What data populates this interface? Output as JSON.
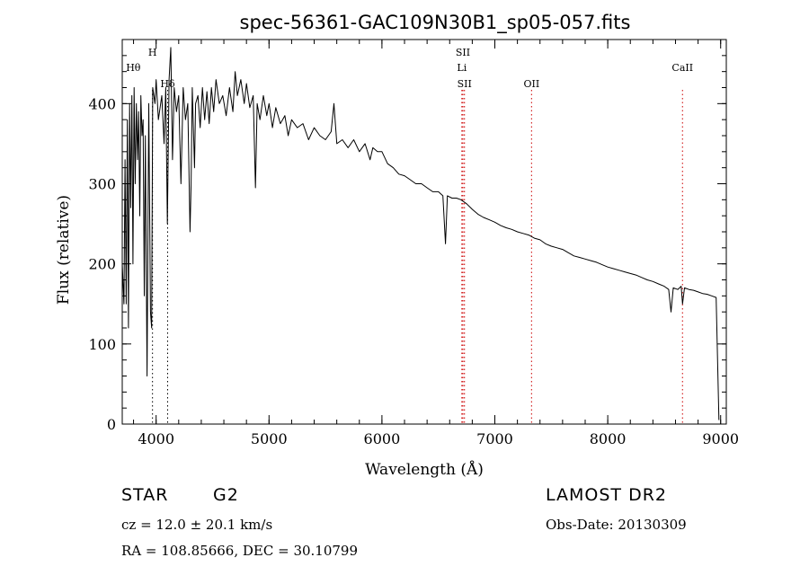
{
  "chart_data": {
    "type": "line",
    "title": "spec-56361-GAC109N30B1_sp05-057.fits",
    "xlabel": "Wavelength (Å)",
    "ylabel": "Flux (relative)",
    "xlim": [
      3700,
      9050
    ],
    "ylim": [
      0,
      480
    ],
    "x_ticks": [
      "4000",
      "5000",
      "6000",
      "7000",
      "8000",
      "9000"
    ],
    "y_ticks": [
      "0",
      "100",
      "200",
      "300",
      "400"
    ],
    "x_tick_values": [
      4000,
      5000,
      6000,
      7000,
      8000,
      9000
    ],
    "y_tick_values": [
      0,
      100,
      200,
      300,
      400
    ],
    "grid": false,
    "series": [
      {
        "color": "#000000",
        "points": [
          [
            3700,
            200
          ],
          [
            3715,
            150
          ],
          [
            3725,
            330
          ],
          [
            3735,
            150
          ],
          [
            3745,
            380
          ],
          [
            3755,
            120
          ],
          [
            3765,
            400
          ],
          [
            3775,
            270
          ],
          [
            3785,
            410
          ],
          [
            3795,
            200
          ],
          [
            3805,
            420
          ],
          [
            3815,
            300
          ],
          [
            3825,
            400
          ],
          [
            3835,
            330
          ],
          [
            3845,
            390
          ],
          [
            3855,
            260
          ],
          [
            3865,
            410
          ],
          [
            3875,
            360
          ],
          [
            3885,
            380
          ],
          [
            3895,
            160
          ],
          [
            3905,
            360
          ],
          [
            3920,
            60
          ],
          [
            3935,
            400
          ],
          [
            3950,
            140
          ],
          [
            3960,
            120
          ],
          [
            3970,
            420
          ],
          [
            3990,
            400
          ],
          [
            4000,
            430
          ],
          [
            4020,
            380
          ],
          [
            4050,
            410
          ],
          [
            4070,
            350
          ],
          [
            4085,
            420
          ],
          [
            4100,
            250
          ],
          [
            4115,
            430
          ],
          [
            4130,
            470
          ],
          [
            4145,
            330
          ],
          [
            4160,
            420
          ],
          [
            4180,
            390
          ],
          [
            4200,
            410
          ],
          [
            4220,
            300
          ],
          [
            4240,
            420
          ],
          [
            4260,
            380
          ],
          [
            4280,
            400
          ],
          [
            4300,
            240
          ],
          [
            4310,
            300
          ],
          [
            4320,
            420
          ],
          [
            4340,
            320
          ],
          [
            4350,
            400
          ],
          [
            4370,
            410
          ],
          [
            4390,
            370
          ],
          [
            4410,
            420
          ],
          [
            4430,
            380
          ],
          [
            4450,
            415
          ],
          [
            4470,
            375
          ],
          [
            4490,
            420
          ],
          [
            4510,
            390
          ],
          [
            4530,
            430
          ],
          [
            4560,
            400
          ],
          [
            4590,
            410
          ],
          [
            4620,
            385
          ],
          [
            4650,
            420
          ],
          [
            4680,
            390
          ],
          [
            4700,
            440
          ],
          [
            4720,
            410
          ],
          [
            4750,
            430
          ],
          [
            4780,
            400
          ],
          [
            4800,
            425
          ],
          [
            4830,
            395
          ],
          [
            4860,
            410
          ],
          [
            4880,
            295
          ],
          [
            4895,
            400
          ],
          [
            4920,
            380
          ],
          [
            4950,
            410
          ],
          [
            4980,
            385
          ],
          [
            5000,
            400
          ],
          [
            5030,
            370
          ],
          [
            5060,
            395
          ],
          [
            5100,
            375
          ],
          [
            5140,
            385
          ],
          [
            5170,
            360
          ],
          [
            5200,
            380
          ],
          [
            5250,
            370
          ],
          [
            5300,
            375
          ],
          [
            5350,
            355
          ],
          [
            5400,
            370
          ],
          [
            5450,
            360
          ],
          [
            5500,
            355
          ],
          [
            5550,
            365
          ],
          [
            5575,
            400
          ],
          [
            5600,
            350
          ],
          [
            5650,
            355
          ],
          [
            5700,
            345
          ],
          [
            5750,
            355
          ],
          [
            5800,
            340
          ],
          [
            5850,
            350
          ],
          [
            5895,
            330
          ],
          [
            5920,
            345
          ],
          [
            5960,
            340
          ],
          [
            6000,
            340
          ],
          [
            6050,
            325
          ],
          [
            6100,
            320
          ],
          [
            6150,
            312
          ],
          [
            6200,
            310
          ],
          [
            6250,
            305
          ],
          [
            6300,
            300
          ],
          [
            6350,
            300
          ],
          [
            6400,
            295
          ],
          [
            6450,
            290
          ],
          [
            6500,
            290
          ],
          [
            6540,
            285
          ],
          [
            6563,
            225
          ],
          [
            6580,
            285
          ],
          [
            6620,
            282
          ],
          [
            6660,
            282
          ],
          [
            6700,
            280
          ],
          [
            6750,
            275
          ],
          [
            6800,
            268
          ],
          [
            6850,
            262
          ],
          [
            6900,
            258
          ],
          [
            6950,
            255
          ],
          [
            7000,
            252
          ],
          [
            7050,
            248
          ],
          [
            7100,
            245
          ],
          [
            7150,
            243
          ],
          [
            7200,
            240
          ],
          [
            7250,
            238
          ],
          [
            7300,
            236
          ],
          [
            7350,
            232
          ],
          [
            7400,
            230
          ],
          [
            7450,
            225
          ],
          [
            7500,
            222
          ],
          [
            7550,
            220
          ],
          [
            7600,
            218
          ],
          [
            7650,
            214
          ],
          [
            7700,
            210
          ],
          [
            7750,
            208
          ],
          [
            7800,
            206
          ],
          [
            7850,
            204
          ],
          [
            7900,
            202
          ],
          [
            7950,
            199
          ],
          [
            8000,
            196
          ],
          [
            8050,
            194
          ],
          [
            8100,
            192
          ],
          [
            8150,
            190
          ],
          [
            8200,
            188
          ],
          [
            8250,
            186
          ],
          [
            8300,
            183
          ],
          [
            8350,
            180
          ],
          [
            8400,
            178
          ],
          [
            8450,
            175
          ],
          [
            8500,
            172
          ],
          [
            8540,
            168
          ],
          [
            8560,
            140
          ],
          [
            8580,
            170
          ],
          [
            8620,
            168
          ],
          [
            8650,
            172
          ],
          [
            8662,
            150
          ],
          [
            8680,
            170
          ],
          [
            8720,
            168
          ],
          [
            8760,
            167
          ],
          [
            8800,
            165
          ],
          [
            8840,
            163
          ],
          [
            8880,
            162
          ],
          [
            8920,
            160
          ],
          [
            8960,
            158
          ],
          [
            8985,
            5
          ]
        ]
      }
    ],
    "annotations": [
      {
        "label": "Hθ",
        "x": 3798,
        "level": 1,
        "color": "#000000",
        "line": false
      },
      {
        "label": "H",
        "x": 3968,
        "level": 0,
        "color": "#000000",
        "line": true
      },
      {
        "label": "Hδ",
        "x": 4102,
        "level": 2,
        "color": "#000000",
        "line": true
      },
      {
        "label": "SII",
        "x": 6717,
        "level": 0,
        "color": "#cc0000",
        "line": true
      },
      {
        "label": "Li",
        "x": 6708,
        "level": 1,
        "color": "#cc0000",
        "line": true
      },
      {
        "label": "SII",
        "x": 6731,
        "level": 2,
        "color": "#cc0000",
        "line": true
      },
      {
        "label": "OII",
        "x": 7325,
        "level": 2,
        "color": "#cc0000",
        "line": true
      },
      {
        "label": "CaII",
        "x": 8662,
        "level": 1,
        "color": "#cc0000",
        "line": true
      }
    ]
  },
  "footer": {
    "object_type": "STAR",
    "subclass": "G2",
    "survey": "LAMOST DR2",
    "redshift": "cz = 12.0 ± 20.1 km/s",
    "obs_date": "Obs-Date: 20130309",
    "coords": "RA = 108.85666, DEC =  30.10799"
  }
}
